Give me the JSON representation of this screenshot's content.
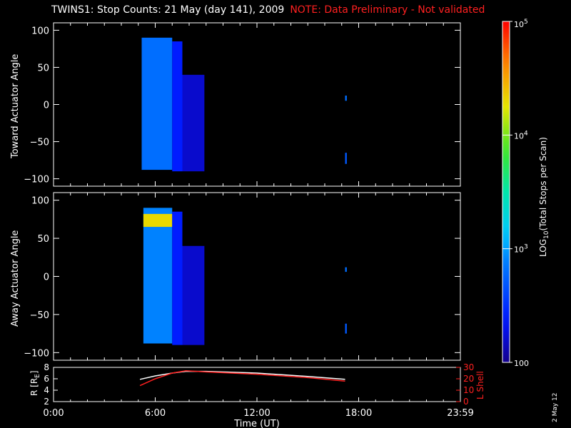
{
  "title": "TWINS1: Stop Counts: 21 May (day 141), 2009",
  "note": "NOTE: Data Preliminary - Not validated",
  "date_stamp": "2 May 12",
  "colors": {
    "background": "#000000",
    "axes": "#ffffff",
    "note": "#ff2020",
    "lshell": "#ff2020",
    "radius": "#ffffff"
  },
  "chart_data": [
    {
      "type": "heatmap",
      "ylabel": "Toward Actuator Angle",
      "xlim": [
        0,
        24
      ],
      "ylim": [
        -110,
        110
      ],
      "yticks": [
        -100,
        -50,
        0,
        50,
        100
      ],
      "xticks": [
        "0:00",
        "6:00",
        "12:00",
        "18:00",
        "23:59"
      ],
      "log10_counts_approx": [
        {
          "t_start": 5.2,
          "t_end": 7.0,
          "angle_min": -88,
          "angle_max": 90,
          "log10": 2.8
        },
        {
          "t_start": 7.0,
          "t_end": 7.6,
          "angle_min": -90,
          "angle_max": 85,
          "log10": 2.4
        },
        {
          "t_start": 7.6,
          "t_end": 8.9,
          "angle_min": -90,
          "angle_max": 40,
          "log10": 2.2
        },
        {
          "t_start": 17.2,
          "t_end": 17.3,
          "angle_min": 5,
          "angle_max": 12,
          "log10": 2.8
        },
        {
          "t_start": 17.2,
          "t_end": 17.3,
          "angle_min": -80,
          "angle_max": -65,
          "log10": 2.7
        }
      ]
    },
    {
      "type": "heatmap",
      "ylabel": "Away Actuator Angle",
      "xlim": [
        0,
        24
      ],
      "ylim": [
        -110,
        110
      ],
      "yticks": [
        -100,
        -50,
        0,
        50,
        100
      ],
      "xticks": [
        "0:00",
        "6:00",
        "12:00",
        "18:00",
        "23:59"
      ],
      "log10_counts_approx": [
        {
          "t_start": 5.3,
          "t_end": 7.0,
          "angle_min": -88,
          "angle_max": 90,
          "log10": 2.9
        },
        {
          "t_start": 5.3,
          "t_end": 7.0,
          "angle_min": 65,
          "angle_max": 82,
          "log10": 4.3
        },
        {
          "t_start": 7.0,
          "t_end": 7.6,
          "angle_min": -90,
          "angle_max": 85,
          "log10": 2.4
        },
        {
          "t_start": 7.6,
          "t_end": 8.9,
          "angle_min": -90,
          "angle_max": 40,
          "log10": 2.2
        },
        {
          "t_start": 17.2,
          "t_end": 17.3,
          "angle_min": 6,
          "angle_max": 12,
          "log10": 2.8
        },
        {
          "t_start": 17.2,
          "t_end": 17.3,
          "angle_min": -75,
          "angle_max": -62,
          "log10": 2.7
        }
      ]
    },
    {
      "type": "line",
      "ylabel": "R [R_E]",
      "y2label": "L Shell",
      "xlabel": "Time (UT)",
      "xlim": [
        0,
        24
      ],
      "ylim": [
        2,
        8
      ],
      "y2lim": [
        0,
        30
      ],
      "yticks": [
        2,
        4,
        6,
        8
      ],
      "y2ticks": [
        0,
        10,
        20,
        30
      ],
      "xticks": [
        "0:00",
        "6:00",
        "12:00",
        "18:00",
        "23:59"
      ],
      "series": [
        {
          "name": "R [R_E]",
          "color": "#ffffff",
          "axis": "left",
          "x": [
            5.1,
            6.0,
            7.0,
            7.8,
            9.0,
            12.0,
            15.0,
            17.2
          ],
          "y": [
            5.9,
            6.5,
            7.0,
            7.3,
            7.3,
            7.0,
            6.4,
            5.9
          ]
        },
        {
          "name": "L Shell",
          "color": "#ff2020",
          "axis": "right",
          "x": [
            5.1,
            6.0,
            7.0,
            7.8,
            9.0,
            12.0,
            15.0,
            17.2
          ],
          "y": [
            14,
            20,
            25,
            27,
            26,
            24,
            21,
            18
          ]
        }
      ]
    }
  ],
  "colorbar": {
    "label": "LOG",
    "label_sub": "10",
    "label_rest": "(Total Stops per Scan)",
    "min_log10": 2,
    "max_log10": 5,
    "ticks": [
      {
        "log10": 5,
        "base": "10",
        "exp": "5"
      },
      {
        "log10": 4,
        "base": "10",
        "exp": "4"
      },
      {
        "log10": 3,
        "base": "10",
        "exp": "3"
      },
      {
        "log10": 2,
        "base": "100",
        "exp": ""
      }
    ]
  }
}
